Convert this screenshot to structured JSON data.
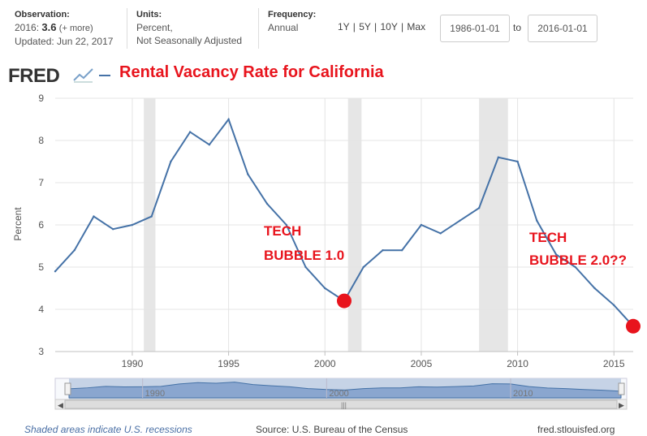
{
  "header": {
    "observation": {
      "label": "Observation:",
      "year_text": "2016:",
      "value": "3.6",
      "more": "(+ more)",
      "updated": "Updated: Jun 22, 2017"
    },
    "units": {
      "label": "Units:",
      "line1": "Percent,",
      "line2": "Not Seasonally Adjusted"
    },
    "frequency": {
      "label": "Frequency:",
      "value": "Annual"
    },
    "ranges": "1Y | 5Y | 10Y | Max",
    "start_date": "1986-01-01",
    "to_label": "to",
    "end_date": "2016-01-01"
  },
  "logo": "FRED",
  "title": "Rental Vacancy Rate for California",
  "annotations": {
    "a1_line1": "TECH",
    "a1_line2": "BUBBLE 1.0",
    "a2_line1": "TECH",
    "a2_line2": "BUBBLE 2.0??"
  },
  "footer": {
    "recessions": "Shaded areas indicate U.S. recessions",
    "source": "Source: U.S. Bureau of the Census",
    "site": "fred.stlouisfed.org"
  },
  "colors": {
    "line": "#4572a7",
    "annotation": "#e8141d",
    "recession": "#e6e6e6"
  },
  "chart_data": {
    "type": "line",
    "ylabel": "Percent",
    "ylim": [
      3,
      9
    ],
    "xlim": [
      1986,
      2016
    ],
    "yticks": [
      3,
      4,
      5,
      6,
      7,
      8,
      9
    ],
    "xticks": [
      1990,
      1995,
      2000,
      2005,
      2010,
      2015
    ],
    "grid": true,
    "recessions": [
      [
        1990.6,
        1991.2
      ],
      [
        2001.2,
        2001.9
      ],
      [
        2008.0,
        2009.5
      ]
    ],
    "highlight_points": [
      [
        2001,
        4.2
      ],
      [
        2016,
        3.6
      ]
    ],
    "x": [
      1986,
      1987,
      1988,
      1989,
      1990,
      1991,
      1992,
      1993,
      1994,
      1995,
      1996,
      1997,
      1998,
      1999,
      2000,
      2001,
      2002,
      2003,
      2004,
      2005,
      2006,
      2007,
      2008,
      2009,
      2010,
      2011,
      2012,
      2013,
      2014,
      2015,
      2016
    ],
    "series": [
      {
        "values": [
          4.9,
          5.4,
          6.2,
          5.9,
          6.0,
          6.2,
          7.5,
          8.2,
          7.9,
          8.5,
          7.2,
          6.5,
          6.0,
          5.0,
          4.5,
          4.2,
          5.0,
          5.4,
          5.4,
          6.0,
          5.8,
          6.1,
          6.4,
          7.6,
          7.5,
          6.1,
          5.3,
          5.0,
          4.5,
          4.1,
          3.6
        ]
      }
    ],
    "navigator_ticks": [
      1990,
      2000,
      2010
    ]
  }
}
